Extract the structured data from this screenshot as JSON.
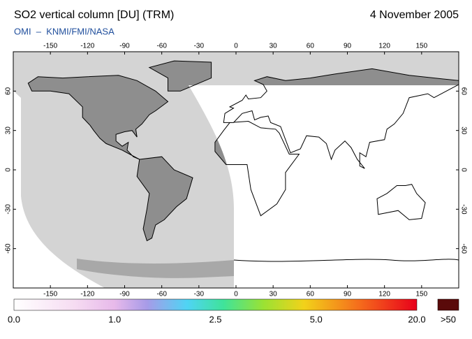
{
  "header": {
    "title": "SO2 vertical column [DU] (TRM)",
    "date": "4 November 2005",
    "subtitle": "OMI  –  KNMI/FMI/NASA"
  },
  "map": {
    "xlim": [
      -180,
      180
    ],
    "ylim": [
      -90,
      90
    ],
    "xticks": [
      -150,
      -120,
      -90,
      -60,
      -30,
      0,
      30,
      60,
      90,
      120,
      150
    ],
    "yticks": [
      60,
      30,
      0,
      -30,
      -60
    ]
  },
  "colorbar": {
    "labels": [
      "0.0",
      "1.0",
      "2.5",
      "5.0",
      "20.0"
    ],
    "overflow": ">50"
  }
}
